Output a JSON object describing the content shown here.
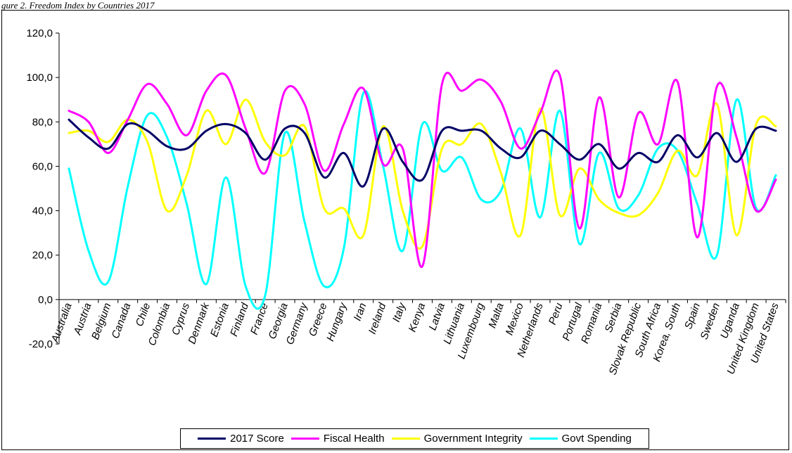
{
  "caption": "gure 2. Freedom Index by Countries 2017",
  "colors": {
    "score": "#000066",
    "fiscal": "#ff00ff",
    "integrity": "#ffff00",
    "spending": "#00ffff"
  },
  "chart_data": {
    "type": "line",
    "title": "",
    "xlabel": "",
    "ylabel": "",
    "ylim": [
      -20,
      120
    ],
    "yticks": [
      "-20,0",
      "0,0",
      "20,0",
      "40,0",
      "60,0",
      "80,0",
      "100,0",
      "120,0"
    ],
    "grid": false,
    "smooth": true,
    "legend_position": "bottom",
    "categories": [
      "Australia",
      "Austria",
      "Belgium",
      "Canada",
      "Chile",
      "Colombia",
      "Cyprus",
      "Denmark",
      "Estonia",
      "Finland",
      "France",
      "Georgia",
      "Germany",
      "Greece",
      "Hungary",
      "Iran",
      "Ireland",
      "Italy",
      "Kenya",
      "Latvia",
      "Lithuania",
      "Luxembourg",
      "Malta",
      "Mexico",
      "Netherlands",
      "Peru",
      "Portugal",
      "Romania",
      "Serbia",
      "Slovak Republic",
      "South Africa",
      "Korea, South",
      "Spain",
      "Sweden",
      "Uganda",
      "United Kingdom",
      "United States"
    ],
    "series": [
      {
        "name": "2017 Score",
        "color_key": "score",
        "values": [
          81,
          73,
          68,
          79,
          76,
          69,
          68,
          76,
          79,
          75,
          63,
          77,
          75,
          55,
          66,
          51,
          77,
          62,
          54,
          76,
          76,
          76,
          68,
          64,
          76,
          70,
          63,
          70,
          59,
          66,
          62,
          74,
          64,
          75,
          62,
          77,
          76
        ]
      },
      {
        "name": "Fiscal Health",
        "color_key": "fiscal",
        "values": [
          85,
          80,
          66,
          81,
          97,
          88,
          74,
          94,
          101,
          77,
          57,
          94,
          88,
          58,
          79,
          95,
          61,
          68,
          15,
          97,
          94,
          99,
          89,
          68,
          84,
          101,
          32,
          91,
          46,
          84,
          70,
          98,
          28,
          96,
          73,
          40,
          54
        ]
      },
      {
        "name": "Government Integrity",
        "color_key": "integrity",
        "values": [
          75,
          76,
          71,
          81,
          71,
          40,
          56,
          85,
          70,
          90,
          71,
          65,
          78,
          41,
          41,
          29,
          78,
          40,
          24,
          68,
          70,
          79,
          57,
          29,
          86,
          38,
          59,
          45,
          39,
          38,
          48,
          67,
          56,
          88,
          29,
          79,
          78
        ]
      },
      {
        "name": "Govt Spending",
        "color_key": "spending",
        "values": [
          59,
          22,
          8,
          51,
          83,
          73,
          43,
          7,
          55,
          6,
          2,
          75,
          35,
          6,
          23,
          93,
          60,
          22,
          79,
          58,
          64,
          45,
          49,
          77,
          37,
          85,
          25,
          66,
          41,
          47,
          68,
          67,
          43,
          20,
          90,
          41,
          56
        ]
      }
    ]
  }
}
